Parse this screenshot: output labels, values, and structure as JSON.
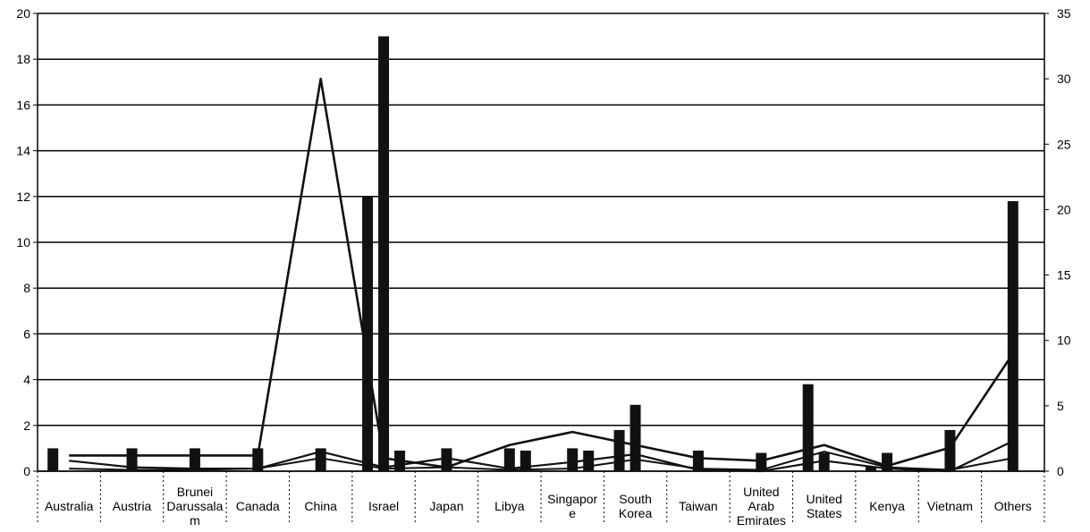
{
  "chart_data": {
    "type": "bar",
    "categories": [
      [
        "Australia"
      ],
      [
        "Austria"
      ],
      [
        "Brunei",
        "Darussala",
        "m"
      ],
      [
        "Canada"
      ],
      [
        "China"
      ],
      [
        "Israel"
      ],
      [
        "Japan"
      ],
      [
        "Libya"
      ],
      [
        "Singapor",
        "e"
      ],
      [
        "South",
        "Korea"
      ],
      [
        "Taiwan"
      ],
      [
        "United",
        "Arab",
        "Emirates"
      ],
      [
        "United",
        "States"
      ],
      [
        "Kenya"
      ],
      [
        "Vietnam"
      ],
      [
        "Others"
      ]
    ],
    "ylim_left": [
      0,
      20
    ],
    "yticks_left": [
      0,
      2,
      4,
      6,
      8,
      10,
      12,
      14,
      16,
      18,
      20
    ],
    "ylim_right": [
      0,
      35
    ],
    "yticks_right": [
      0,
      5,
      10,
      15,
      20,
      25,
      30,
      35
    ],
    "grid": true,
    "legend": "none",
    "bar_series": [
      {
        "values": [
          1.0,
          0,
          0,
          0,
          0,
          12.0,
          0,
          0,
          0,
          1.8,
          0,
          0,
          3.8,
          0.2,
          0,
          0
        ]
      },
      {
        "values": [
          0,
          1.0,
          1.0,
          1.0,
          1.0,
          19.0,
          1.0,
          1.0,
          1.0,
          2.9,
          0.9,
          0.8,
          0.8,
          0.8,
          1.8,
          11.8
        ]
      },
      {
        "values": [
          0,
          0,
          0,
          0,
          0,
          0.9,
          0,
          0.9,
          0.9,
          0,
          0,
          0,
          0,
          0,
          0,
          0
        ]
      }
    ],
    "line_series": [
      {
        "axis": "right",
        "values": [
          1.2,
          1.2,
          1.2,
          1.2,
          30.0,
          1.0,
          0.3,
          2.0,
          3.0,
          2.0,
          1.0,
          0.8,
          2.0,
          0.4,
          1.8,
          9.0
        ]
      },
      {
        "axis": "right",
        "values": [
          0.8,
          0.3,
          0.2,
          0.2,
          1.5,
          0.3,
          1.0,
          0.2,
          0.7,
          1.3,
          0.1,
          0.0,
          0.8,
          0.2,
          0.0,
          2.3
        ]
      },
      {
        "axis": "right",
        "values": [
          0.2,
          0.1,
          0.1,
          0.2,
          1.0,
          0.2,
          0.3,
          0.1,
          0.2,
          0.9,
          0.2,
          0.1,
          1.5,
          0.3,
          0.1,
          1.0
        ]
      }
    ]
  }
}
